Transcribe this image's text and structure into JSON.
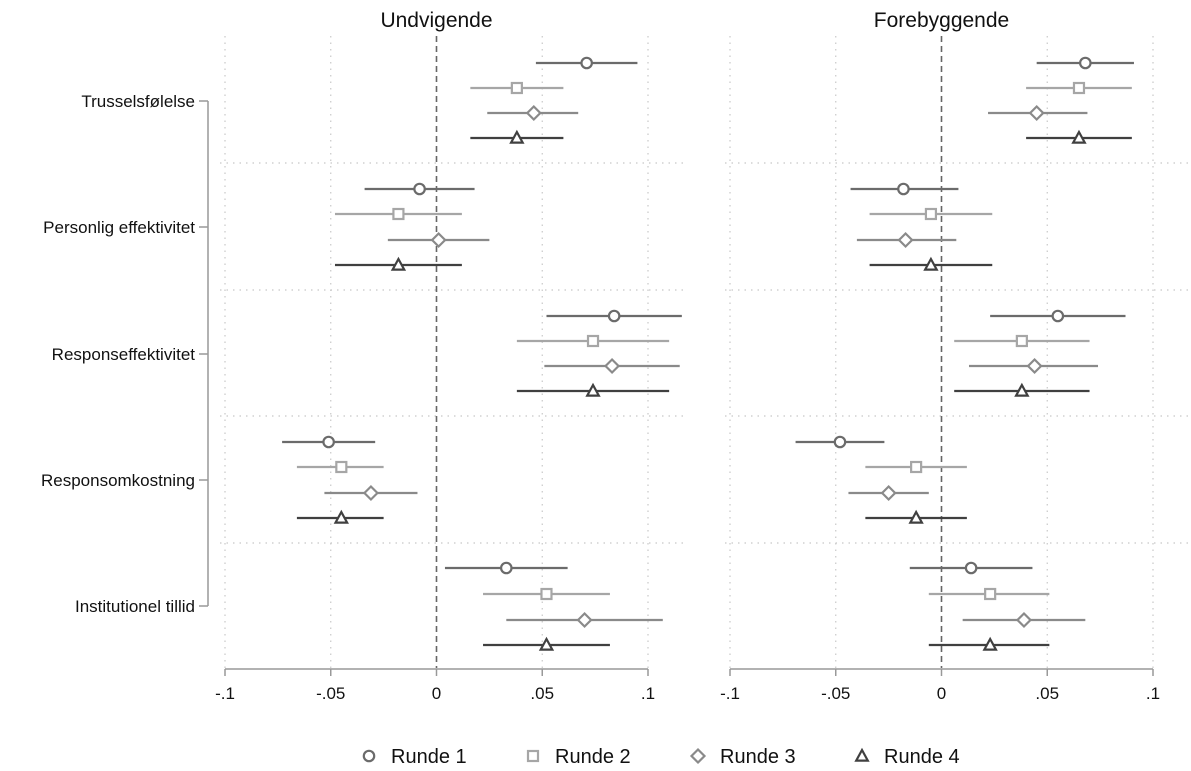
{
  "chart_data": {
    "type": "coefficient-plot",
    "panels": [
      {
        "title": "Undvigende",
        "xlim": [
          -0.1,
          0.1
        ],
        "xticks": [
          -0.1,
          -0.05,
          0,
          0.05,
          0.1
        ],
        "xtick_labels": [
          "-.1",
          "-.05",
          "0",
          ".05",
          ".1"
        ],
        "reference_line": 0,
        "points": [
          {
            "category": "Trusselsfølelse",
            "series": "Runde 1",
            "estimate": 0.071,
            "ci": [
              0.047,
              0.095
            ]
          },
          {
            "category": "Trusselsfølelse",
            "series": "Runde 2",
            "estimate": 0.038,
            "ci": [
              0.016,
              0.06
            ]
          },
          {
            "category": "Trusselsfølelse",
            "series": "Runde 3",
            "estimate": 0.046,
            "ci": [
              0.024,
              0.067
            ]
          },
          {
            "category": "Trusselsfølelse",
            "series": "Runde 4",
            "estimate": 0.038,
            "ci": [
              0.016,
              0.06
            ]
          },
          {
            "category": "Personlig effektivitet",
            "series": "Runde 1",
            "estimate": -0.008,
            "ci": [
              -0.034,
              0.018
            ]
          },
          {
            "category": "Personlig effektivitet",
            "series": "Runde 2",
            "estimate": -0.018,
            "ci": [
              -0.048,
              0.012
            ]
          },
          {
            "category": "Personlig effektivitet",
            "series": "Runde 3",
            "estimate": 0.001,
            "ci": [
              -0.023,
              0.025
            ]
          },
          {
            "category": "Personlig effektivitet",
            "series": "Runde 4",
            "estimate": -0.018,
            "ci": [
              -0.048,
              0.012
            ]
          },
          {
            "category": "Responseffektivitet",
            "series": "Runde 1",
            "estimate": 0.084,
            "ci": [
              0.052,
              0.116
            ]
          },
          {
            "category": "Responseffektivitet",
            "series": "Runde 2",
            "estimate": 0.074,
            "ci": [
              0.038,
              0.11
            ]
          },
          {
            "category": "Responseffektivitet",
            "series": "Runde 3",
            "estimate": 0.083,
            "ci": [
              0.051,
              0.115
            ]
          },
          {
            "category": "Responseffektivitet",
            "series": "Runde 4",
            "estimate": 0.074,
            "ci": [
              0.038,
              0.11
            ]
          },
          {
            "category": "Responsomkostning",
            "series": "Runde 1",
            "estimate": -0.051,
            "ci": [
              -0.073,
              -0.029
            ]
          },
          {
            "category": "Responsomkostning",
            "series": "Runde 2",
            "estimate": -0.045,
            "ci": [
              -0.066,
              -0.025
            ]
          },
          {
            "category": "Responsomkostning",
            "series": "Runde 3",
            "estimate": -0.031,
            "ci": [
              -0.053,
              -0.009
            ]
          },
          {
            "category": "Responsomkostning",
            "series": "Runde 4",
            "estimate": -0.045,
            "ci": [
              -0.066,
              -0.025
            ]
          },
          {
            "category": "Institutionel tillid",
            "series": "Runde 1",
            "estimate": 0.033,
            "ci": [
              0.004,
              0.062
            ]
          },
          {
            "category": "Institutionel tillid",
            "series": "Runde 2",
            "estimate": 0.052,
            "ci": [
              0.022,
              0.082
            ]
          },
          {
            "category": "Institutionel tillid",
            "series": "Runde 3",
            "estimate": 0.07,
            "ci": [
              0.033,
              0.107
            ]
          },
          {
            "category": "Institutionel tillid",
            "series": "Runde 4",
            "estimate": 0.052,
            "ci": [
              0.022,
              0.082
            ]
          }
        ]
      },
      {
        "title": "Forebyggende",
        "xlim": [
          -0.1,
          0.1
        ],
        "xticks": [
          -0.1,
          -0.05,
          0,
          0.05,
          0.1
        ],
        "xtick_labels": [
          "-.1",
          "-.05",
          "0",
          ".05",
          ".1"
        ],
        "reference_line": 0,
        "points": [
          {
            "category": "Trusselsfølelse",
            "series": "Runde 1",
            "estimate": 0.068,
            "ci": [
              0.045,
              0.091
            ]
          },
          {
            "category": "Trusselsfølelse",
            "series": "Runde 2",
            "estimate": 0.065,
            "ci": [
              0.04,
              0.09
            ]
          },
          {
            "category": "Trusselsfølelse",
            "series": "Runde 3",
            "estimate": 0.045,
            "ci": [
              0.022,
              0.069
            ]
          },
          {
            "category": "Trusselsfølelse",
            "series": "Runde 4",
            "estimate": 0.065,
            "ci": [
              0.04,
              0.09
            ]
          },
          {
            "category": "Personlig effektivitet",
            "series": "Runde 1",
            "estimate": -0.018,
            "ci": [
              -0.043,
              0.008
            ]
          },
          {
            "category": "Personlig effektivitet",
            "series": "Runde 2",
            "estimate": -0.005,
            "ci": [
              -0.034,
              0.024
            ]
          },
          {
            "category": "Personlig effektivitet",
            "series": "Runde 3",
            "estimate": -0.017,
            "ci": [
              -0.04,
              0.007
            ]
          },
          {
            "category": "Personlig effektivitet",
            "series": "Runde 4",
            "estimate": -0.005,
            "ci": [
              -0.034,
              0.024
            ]
          },
          {
            "category": "Responseffektivitet",
            "series": "Runde 1",
            "estimate": 0.055,
            "ci": [
              0.023,
              0.087
            ]
          },
          {
            "category": "Responseffektivitet",
            "series": "Runde 2",
            "estimate": 0.038,
            "ci": [
              0.006,
              0.07
            ]
          },
          {
            "category": "Responseffektivitet",
            "series": "Runde 3",
            "estimate": 0.044,
            "ci": [
              0.013,
              0.074
            ]
          },
          {
            "category": "Responseffektivitet",
            "series": "Runde 4",
            "estimate": 0.038,
            "ci": [
              0.006,
              0.07
            ]
          },
          {
            "category": "Responsomkostning",
            "series": "Runde 1",
            "estimate": -0.048,
            "ci": [
              -0.069,
              -0.027
            ]
          },
          {
            "category": "Responsomkostning",
            "series": "Runde 2",
            "estimate": -0.012,
            "ci": [
              -0.036,
              0.012
            ]
          },
          {
            "category": "Responsomkostning",
            "series": "Runde 3",
            "estimate": -0.025,
            "ci": [
              -0.044,
              -0.006
            ]
          },
          {
            "category": "Responsomkostning",
            "series": "Runde 4",
            "estimate": -0.012,
            "ci": [
              -0.036,
              0.012
            ]
          },
          {
            "category": "Institutionel tillid",
            "series": "Runde 1",
            "estimate": 0.014,
            "ci": [
              -0.015,
              0.043
            ]
          },
          {
            "category": "Institutionel tillid",
            "series": "Runde 2",
            "estimate": 0.023,
            "ci": [
              -0.006,
              0.051
            ]
          },
          {
            "category": "Institutionel tillid",
            "series": "Runde 3",
            "estimate": 0.039,
            "ci": [
              0.01,
              0.068
            ]
          },
          {
            "category": "Institutionel tillid",
            "series": "Runde 4",
            "estimate": 0.023,
            "ci": [
              -0.006,
              0.051
            ]
          }
        ]
      }
    ],
    "categories": [
      "Trusselsfølelse",
      "Personlig effektivitet",
      "Responseffektivitet",
      "Responsomkostning",
      "Institutionel tillid"
    ],
    "series": [
      {
        "name": "Runde 1",
        "marker": "circle",
        "color": "#6b6b6b"
      },
      {
        "name": "Runde 2",
        "marker": "square",
        "color": "#a6a6a6"
      },
      {
        "name": "Runde 3",
        "marker": "diamond",
        "color": "#8a8a8a"
      },
      {
        "name": "Runde 4",
        "marker": "triangle",
        "color": "#404040"
      }
    ],
    "legend": "bottom",
    "grid": true,
    "grid_color": "#c8c8c8",
    "axis_color": "#999999",
    "reference_line_color": "#666666"
  }
}
